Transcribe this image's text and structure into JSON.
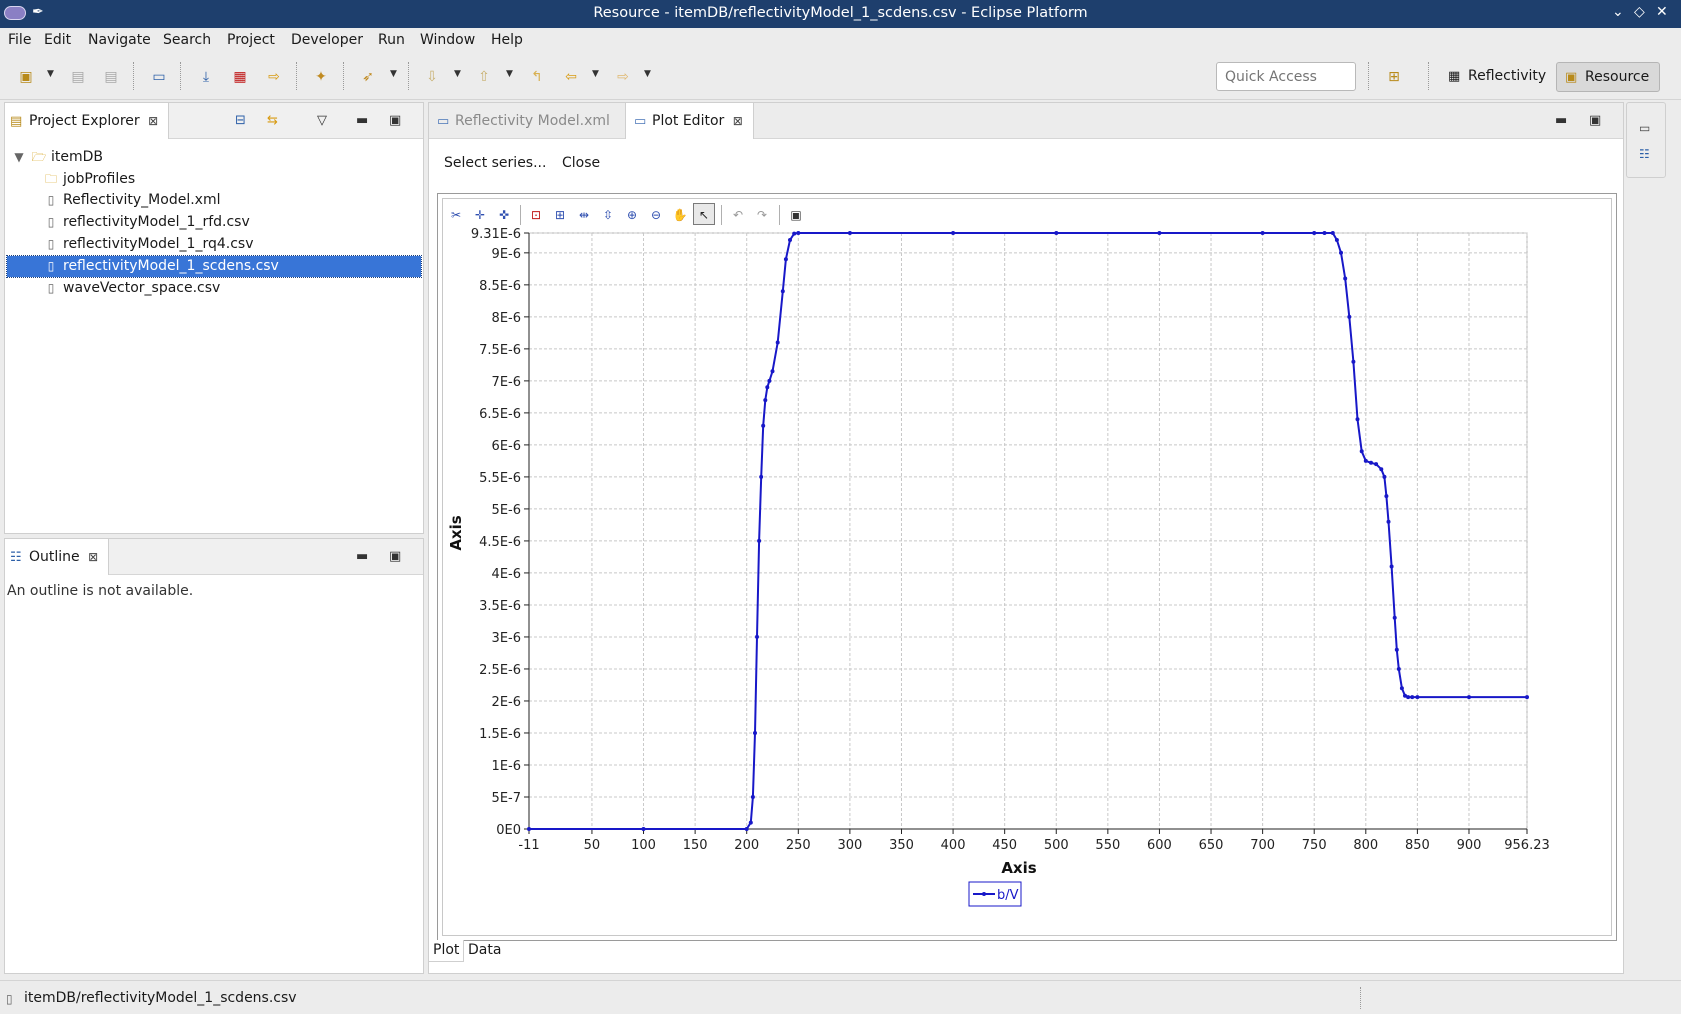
{
  "window": {
    "title": "Resource - itemDB/reflectivityModel_1_scdens.csv - Eclipse Platform"
  },
  "menu": [
    "File",
    "Edit",
    "Navigate",
    "Search",
    "Project",
    "Developer",
    "Run",
    "Window",
    "Help"
  ],
  "toolbar": {
    "quick_access_placeholder": "Quick Access",
    "perspectives": [
      "Reflectivity",
      "Resource"
    ]
  },
  "project_explorer": {
    "title": "Project Explorer",
    "root": "itemDB",
    "items": [
      "jobProfiles",
      "Reflectivity_Model.xml",
      "reflectivityModel_1_rfd.csv",
      "reflectivityModel_1_rq4.csv",
      "reflectivityModel_1_scdens.csv",
      "waveVector_space.csv"
    ],
    "selected": "reflectivityModel_1_scdens.csv"
  },
  "outline": {
    "title": "Outline",
    "message": "An outline is not available."
  },
  "editor": {
    "tabs": [
      "Reflectivity Model.xml",
      "Plot Editor"
    ],
    "active_tab": "Plot Editor",
    "actions": [
      "Select series...",
      "Close"
    ],
    "bottom_tabs": [
      "Plot",
      "Data"
    ]
  },
  "status": {
    "text": "itemDB/reflectivityModel_1_scdens.csv"
  },
  "chart_data": {
    "type": "line",
    "xlabel": "Axis",
    "ylabel": "Axis",
    "xlim": [
      -11,
      956.23
    ],
    "ylim": [
      0,
      9.31e-06
    ],
    "x_ticks": [
      "-11",
      "50",
      "100",
      "150",
      "200",
      "250",
      "300",
      "350",
      "400",
      "450",
      "500",
      "550",
      "600",
      "650",
      "700",
      "750",
      "800",
      "850",
      "900",
      "956.23"
    ],
    "x_tick_values": [
      -11,
      50,
      100,
      150,
      200,
      250,
      300,
      350,
      400,
      450,
      500,
      550,
      600,
      650,
      700,
      750,
      800,
      850,
      900,
      956.23
    ],
    "y_ticks": [
      "0E0",
      "5E-7",
      "1E-6",
      "1.5E-6",
      "2E-6",
      "2.5E-6",
      "3E-6",
      "3.5E-6",
      "4E-6",
      "4.5E-6",
      "5E-6",
      "5.5E-6",
      "6E-6",
      "6.5E-6",
      "7E-6",
      "7.5E-6",
      "8E-6",
      "8.5E-6",
      "9E-6",
      "9.31E-6"
    ],
    "y_tick_values": [
      0,
      5e-07,
      1e-06,
      1.5e-06,
      2e-06,
      2.5e-06,
      3e-06,
      3.5e-06,
      4e-06,
      4.5e-06,
      5e-06,
      5.5e-06,
      6e-06,
      6.5e-06,
      7e-06,
      7.5e-06,
      8e-06,
      8.5e-06,
      9e-06,
      9.31e-06
    ],
    "grid": true,
    "legend_position": "bottom-center",
    "series": [
      {
        "name": "b/V",
        "color": "#1818c8",
        "x": [
          -11,
          100,
          200,
          204,
          206,
          208,
          210,
          212,
          214,
          216,
          218,
          220,
          222,
          225,
          230,
          235,
          238,
          242,
          246,
          250,
          300,
          400,
          500,
          600,
          700,
          750,
          760,
          768,
          772,
          776,
          780,
          784,
          788,
          792,
          796,
          800,
          805,
          810,
          815,
          818,
          820,
          822,
          825,
          828,
          830,
          832,
          835,
          838,
          841,
          845,
          850,
          900,
          956.23
        ],
        "y": [
          0,
          0,
          0,
          1e-07,
          5e-07,
          1.5e-06,
          3e-06,
          4.5e-06,
          5.5e-06,
          6.3e-06,
          6.7e-06,
          6.9e-06,
          7e-06,
          7.15e-06,
          7.6e-06,
          8.4e-06,
          8.9e-06,
          9.2e-06,
          9.3e-06,
          9.31e-06,
          9.31e-06,
          9.31e-06,
          9.31e-06,
          9.31e-06,
          9.31e-06,
          9.31e-06,
          9.31e-06,
          9.31e-06,
          9.2e-06,
          9e-06,
          8.6e-06,
          8e-06,
          7.3e-06,
          6.4e-06,
          5.9e-06,
          5.75e-06,
          5.72e-06,
          5.7e-06,
          5.62e-06,
          5.5e-06,
          5.2e-06,
          4.8e-06,
          4.1e-06,
          3.3e-06,
          2.8e-06,
          2.5e-06,
          2.2e-06,
          2.08e-06,
          2.06e-06,
          2.06e-06,
          2.06e-06,
          2.06e-06,
          2.06e-06
        ]
      }
    ]
  }
}
